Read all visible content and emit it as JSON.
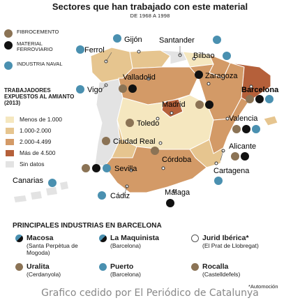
{
  "title": "Sectores que han trabajado con este material",
  "subtitle": "DE 1968 A 1998",
  "colors": {
    "fibrocemento": "#8b7355",
    "ferroviario": "#111111",
    "naval": "#4a90b0",
    "menos_1000": "#f5e7bf",
    "r1000_2000": "#e6c58f",
    "r2000_4499": "#d39a67",
    "mas_4500": "#b5603a",
    "sin_datos": "#e3e3e3",
    "sea": "#ffffff"
  },
  "sector_legend": [
    {
      "label": "FIBROCEMENTO",
      "color": "#8b7355"
    },
    {
      "label": "MATERIAL FERROVIARIO",
      "color": "#111111"
    },
    {
      "label": "INDUSTRIA NAVAL",
      "color": "#4a90b0"
    }
  ],
  "population_legend": {
    "title": "TRABAJADORES EXPUESTOS AL AMIANTO (2013)",
    "items": [
      {
        "label": "Menos de 1.000",
        "color": "#f5e7bf"
      },
      {
        "label": "1.000-2.000",
        "color": "#e6c58f"
      },
      {
        "label": "2.000-4.499",
        "color": "#d39a67"
      },
      {
        "label": "Más de 4.500",
        "color": "#b5603a"
      },
      {
        "label": "Sin datos",
        "color": "#e3e3e3"
      }
    ]
  },
  "cities": {
    "ferrol": "Ferrol",
    "gijon": "Gijón",
    "santander": "Santander",
    "bilbao": "Bilbao",
    "vigo": "Vigo",
    "valladolid": "Valladolid",
    "zaragoza": "Zaragoza",
    "barcelona": "Barcelona",
    "madrid": "Madrid",
    "toledo": "Toledo",
    "valencia": "Valencia",
    "ciudad_real": "Ciudad Real",
    "alicante": "Alicante",
    "sevilla": "Sevilla",
    "cordoba": "Córdoba",
    "cartagena": "Cartagena",
    "canarias": "Canarias",
    "cadiz": "Cádiz",
    "malaga": "Málaga"
  },
  "industries": {
    "title": "PRINCIPALES INDUSTRIAS EN BARCELONA",
    "items": [
      {
        "name": "Macosa",
        "place": "(Santa Perpètua de Mogoda)"
      },
      {
        "name": "La Maquinista",
        "place": "(Barcelona)"
      },
      {
        "name": "Jurid Ibérica*",
        "place": "(El Prat de Llobregat)"
      },
      {
        "name": "Uralita",
        "place": "(Cerdanyola)"
      },
      {
        "name": "Puerto",
        "place": "(Barcelona)"
      },
      {
        "name": "Rocalla",
        "place": "(Castelldefels)"
      }
    ]
  },
  "footnote": "*Automoción",
  "credit": "Grafico cedido por El Periódico de Catalunya"
}
